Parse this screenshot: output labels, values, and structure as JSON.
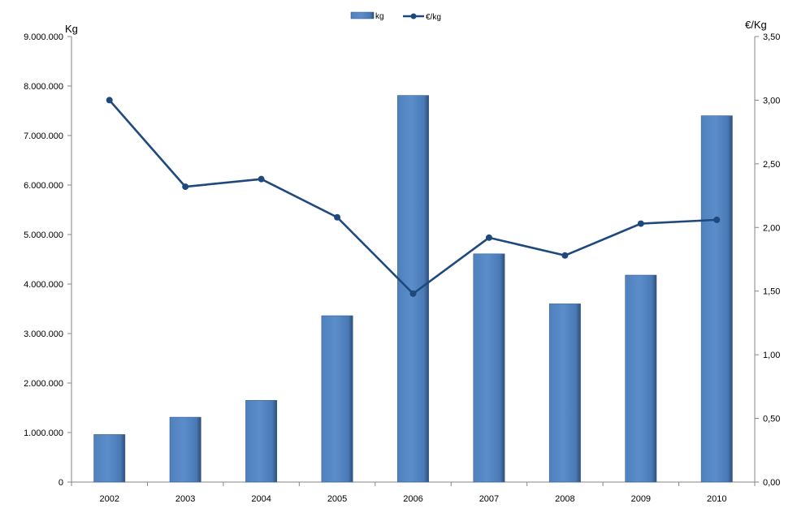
{
  "chart_data": {
    "type": "bar",
    "categories": [
      "2002",
      "2003",
      "2004",
      "2005",
      "2006",
      "2007",
      "2008",
      "2009",
      "2010"
    ],
    "series": [
      {
        "name": "kg",
        "type": "bar",
        "axis": "left",
        "color": "#4F81BD",
        "values": [
          960000,
          1310000,
          1650000,
          3360000,
          7810000,
          4610000,
          3600000,
          4180000,
          7400000
        ]
      },
      {
        "name": "€/kg",
        "type": "line",
        "axis": "right",
        "color": "#1F497D",
        "values": [
          3.0,
          2.32,
          2.38,
          2.08,
          1.48,
          1.92,
          1.78,
          2.03,
          2.06
        ]
      }
    ],
    "title": "",
    "xlabel": "",
    "ylabel": "Kg",
    "y2label": "€/Kg",
    "ylim": [
      0,
      9000000
    ],
    "y2lim": [
      0,
      3.5
    ],
    "yticks": [
      "0",
      "1.000.000",
      "2.000.000",
      "3.000.000",
      "4.000.000",
      "5.000.000",
      "6.000.000",
      "7.000.000",
      "8.000.000",
      "9.000.000"
    ],
    "y2ticks": [
      "0,00",
      "0,50",
      "1,00",
      "1,50",
      "2,00",
      "2,50",
      "3,00",
      "3,50"
    ],
    "grid": false,
    "legend": "top-center"
  }
}
